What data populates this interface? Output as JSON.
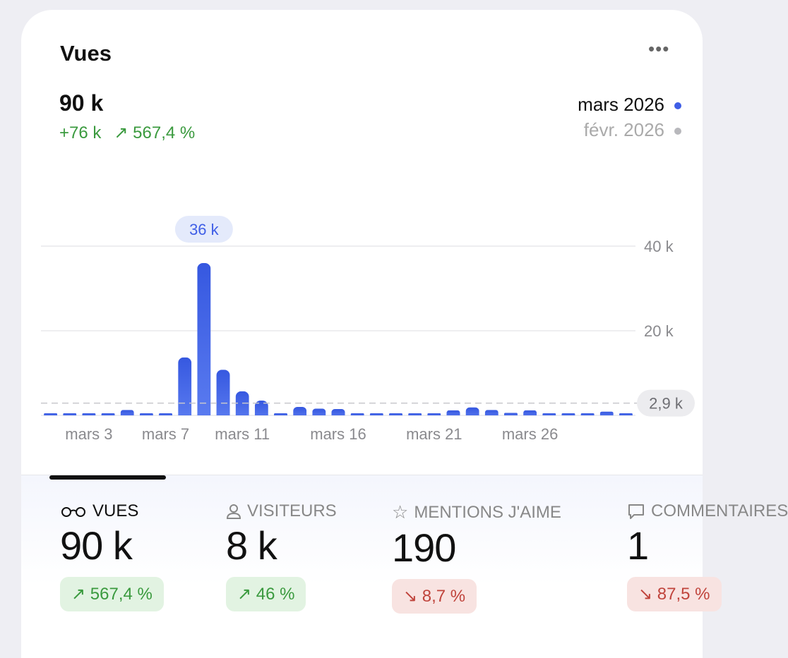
{
  "card": {
    "title": "Vues",
    "more_icon": "ellipsis-icon",
    "total": "90 k",
    "delta_abs": "+76 k",
    "delta_pct": "↗ 567,4 %"
  },
  "legend": {
    "current": "mars 2026",
    "previous": "févr. 2026",
    "current_color": "#3f5ee6",
    "previous_color": "#b8b8bc"
  },
  "chart_data": {
    "type": "bar",
    "categories": [
      "1",
      "2",
      "3",
      "4",
      "5",
      "6",
      "7",
      "8",
      "9",
      "10",
      "11",
      "12",
      "13",
      "14",
      "15",
      "16",
      "17",
      "18",
      "19",
      "20",
      "21",
      "22",
      "23",
      "24",
      "25",
      "26",
      "27",
      "28",
      "29",
      "30",
      "31"
    ],
    "series": [
      {
        "name": "mars 2026",
        "values": [
          400,
          400,
          500,
          400,
          1300,
          500,
          500,
          13700,
          36000,
          10800,
          5700,
          3500,
          400,
          2000,
          1600,
          1500,
          400,
          500,
          500,
          300,
          300,
          1200,
          1900,
          1300,
          600,
          1200,
          400,
          200,
          200,
          900,
          400
        ]
      }
    ],
    "x_tick_labels": [
      {
        "index": 2,
        "label": "mars 3"
      },
      {
        "index": 6,
        "label": "mars 7"
      },
      {
        "index": 10,
        "label": "mars 11"
      },
      {
        "index": 15,
        "label": "mars 16"
      },
      {
        "index": 20,
        "label": "mars 21"
      },
      {
        "index": 25,
        "label": "mars 26"
      }
    ],
    "y_ticks": [
      {
        "value": 20000,
        "label": "20 k"
      },
      {
        "value": 40000,
        "label": "40 k"
      }
    ],
    "ylim": [
      0,
      40000
    ],
    "average": {
      "value": 2900,
      "label": "2,9 k"
    },
    "highlight": {
      "index": 8,
      "label": "36 k"
    },
    "grid": true
  },
  "stats": [
    {
      "label": "VUES",
      "icon": "glasses-icon",
      "value": "90 k",
      "change": "↗ 567,4 %",
      "trend": "up"
    },
    {
      "label": "VISITEURS",
      "icon": "person-icon",
      "value": "8 k",
      "change": "↗ 46 %",
      "trend": "up"
    },
    {
      "label": "MENTIONS J'AIME",
      "icon": "star-icon",
      "value": "190",
      "change": "↘ 8,7 %",
      "trend": "down"
    },
    {
      "label": "COMMENTAIRES",
      "icon": "comment-icon",
      "value": "1",
      "change": "↘ 87,5 %",
      "trend": "down"
    }
  ]
}
